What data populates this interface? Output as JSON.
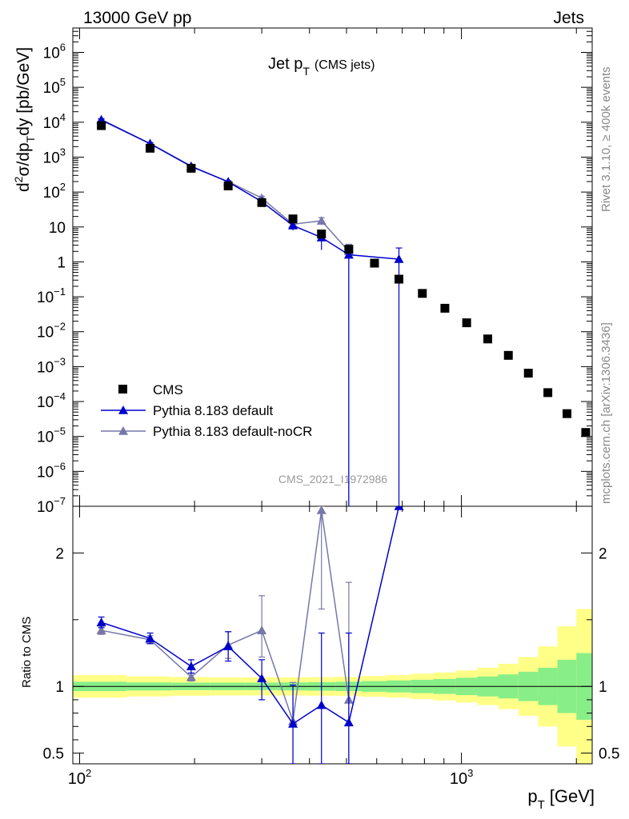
{
  "header": {
    "beam": "13000 GeV pp",
    "category": "Jets"
  },
  "side_labels": {
    "rivet": "Rivet 3.1.10, ≥ 400k events",
    "source": "mcplots.cern.ch [arXiv:1306.3436]"
  },
  "watermark": "CMS_2021_I1972986",
  "chart_data": {
    "type": "scatter",
    "title_main": "Jet p",
    "title_sub": "T",
    "title_extra": "(CMS jets)",
    "xlabel": "p",
    "xlabel_sub": "T",
    "xlabel_unit": "[GeV]",
    "xscale": "log",
    "xlim": [
      96,
      2200
    ],
    "top": {
      "ylabel": "d²σ/dp_T dy [pb/GeV]",
      "yscale": "log",
      "ylim": [
        1e-07,
        5000000.0
      ],
      "ytick_labels": [
        {
          "v": 1000000.0,
          "base": "10",
          "exp": "6"
        },
        {
          "v": 100000.0,
          "base": "10",
          "exp": "5"
        },
        {
          "v": 10000.0,
          "base": "10",
          "exp": "4"
        },
        {
          "v": 1000.0,
          "base": "10",
          "exp": "3"
        },
        {
          "v": 100.0,
          "base": "10",
          "exp": "2"
        },
        {
          "v": 10,
          "base": "10",
          "exp": ""
        },
        {
          "v": 1,
          "base": "1",
          "exp": ""
        },
        {
          "v": 0.1,
          "base": "10",
          "exp": "−1"
        },
        {
          "v": 0.01,
          "base": "10",
          "exp": "−2"
        },
        {
          "v": 0.001,
          "base": "10",
          "exp": "−3"
        },
        {
          "v": 0.0001,
          "base": "10",
          "exp": "−4"
        },
        {
          "v": 1e-05,
          "base": "10",
          "exp": "−5"
        },
        {
          "v": 1e-06,
          "base": "10",
          "exp": "−6"
        },
        {
          "v": 1e-07,
          "base": "10",
          "exp": "−7"
        }
      ]
    },
    "ratio": {
      "ylabel": "Ratio to CMS",
      "ylim": [
        0.42,
        2.35
      ],
      "ytick_labels": [
        {
          "v": 2,
          "label": "2"
        },
        {
          "v": 1,
          "label": "1"
        },
        {
          "v": 0.5,
          "label": "0.5"
        }
      ]
    },
    "xtick_labels": [
      {
        "v": 100,
        "base": "10",
        "exp": "2"
      },
      {
        "v": 1000,
        "base": "10",
        "exp": "3"
      }
    ],
    "legend": [
      {
        "label": "CMS",
        "marker": "square",
        "color": "#000000"
      },
      {
        "label": "Pythia 8.183 default",
        "marker": "triangle",
        "color": "#0000cc"
      },
      {
        "label": "Pythia 8.183 default-noCR",
        "marker": "triangle",
        "color": "#7777aa"
      }
    ],
    "data_series": {
      "name": "CMS",
      "x": [
        114,
        153,
        196,
        245,
        300,
        362,
        430,
        507,
        592,
        686,
        790,
        905,
        1032,
        1172,
        1327,
        1497,
        1684,
        1890,
        2116
      ],
      "y": [
        8000,
        1800,
        480,
        150,
        50,
        17,
        6.3,
        2.3,
        0.92,
        0.32,
        0.125,
        0.047,
        0.018,
        0.0062,
        0.0021,
        0.00065,
        0.00018,
        4.5e-05,
        1.3e-05
      ]
    },
    "series": [
      {
        "name": "Pythia 8.183 default",
        "color": "#0000cc",
        "x": [
          114,
          153,
          196,
          245,
          300,
          362,
          430,
          507,
          686
        ],
        "y": [
          11800,
          2450,
          550,
          195,
          53,
          11,
          5,
          1.6,
          1.2
        ],
        "y_low": [
          11000,
          2300,
          520,
          185,
          45,
          8,
          2.2,
          1e-08,
          1e-08
        ],
        "y_high": [
          12600,
          2600,
          580,
          205,
          61,
          14,
          7.5,
          2.6,
          2.5
        ],
        "ratio": [
          1.48,
          1.36,
          1.15,
          1.3,
          1.06,
          0.72,
          0.86,
          0.73,
          2.5
        ],
        "ratio_low": [
          1.44,
          1.32,
          1.1,
          1.19,
          0.9,
          0.1,
          0.1,
          0.1,
          2.5
        ],
        "ratio_high": [
          1.52,
          1.4,
          1.2,
          1.41,
          1.2,
          1.01,
          1.4,
          1.4,
          2.5
        ]
      },
      {
        "name": "Pythia 8.183 default-noCR",
        "color": "#7777aa",
        "x": [
          114,
          153,
          196,
          245,
          300,
          362,
          430,
          507
        ],
        "y": [
          11400,
          2400,
          530,
          200,
          67,
          12,
          15,
          2
        ],
        "y_low": [
          10700,
          2250,
          500,
          185,
          58,
          9,
          11.5,
          1e-08
        ],
        "y_high": [
          12100,
          2550,
          560,
          215,
          76,
          15,
          18.5,
          3.2
        ],
        "ratio": [
          1.42,
          1.35,
          1.07,
          1.31,
          1.42,
          0.74,
          2.32,
          0.9
        ],
        "ratio_low": [
          1.39,
          1.32,
          1.04,
          1.21,
          1.22,
          0.1,
          1.58,
          0.1
        ],
        "ratio_high": [
          1.45,
          1.38,
          1.1,
          1.41,
          1.68,
          1.03,
          2.35,
          1.78
        ]
      }
    ],
    "uncertainty_bands": {
      "edges": [
        96,
        133,
        174,
        220,
        272,
        330,
        395,
        468,
        548,
        638,
        737,
        846,
        967,
        1101,
        1248,
        1410,
        1588,
        1784,
        2000,
        2200
      ],
      "green_half_width": [
        0.035,
        0.03,
        0.028,
        0.028,
        0.028,
        0.03,
        0.032,
        0.035,
        0.04,
        0.045,
        0.05,
        0.056,
        0.065,
        0.075,
        0.09,
        0.11,
        0.14,
        0.2,
        0.25
      ],
      "yellow_half_width": [
        0.085,
        0.075,
        0.07,
        0.068,
        0.068,
        0.068,
        0.07,
        0.072,
        0.078,
        0.085,
        0.095,
        0.105,
        0.12,
        0.14,
        0.17,
        0.22,
        0.3,
        0.45,
        0.58
      ]
    }
  }
}
